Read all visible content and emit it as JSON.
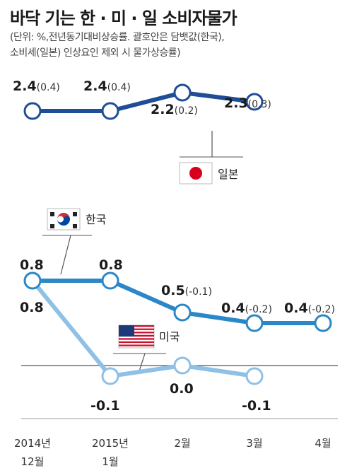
{
  "header": {
    "title": "바닥 기는 한 · 미 · 일 소비자물가",
    "note_line1": "(단위: %,전년동기대비상승률. 괄호안은 담뱃값(한국),",
    "note_line2": "소비세(일본) 인상요인 제외 시 물가상승률)"
  },
  "chart_data": {
    "type": "line",
    "categories": [
      "2014년 12월",
      "2015년 1월",
      "2월",
      "3월",
      "4월"
    ],
    "tick_top": [
      "2014년",
      "2015년",
      "2월",
      "3월",
      "4월"
    ],
    "tick_bottom": [
      "12월",
      "1월",
      "",
      "",
      ""
    ],
    "series": [
      {
        "name": "일본",
        "values": [
          2.4,
          2.4,
          2.2,
          2.3,
          null
        ],
        "labels": [
          "2.4",
          "2.4",
          "2.2",
          "2.3",
          ""
        ],
        "adjusted_labels": [
          "(0.4)",
          "(0.4)",
          "(0.2)",
          "(0.3)",
          ""
        ],
        "color": "#1f4e96"
      },
      {
        "name": "한국",
        "values": [
          0.8,
          0.8,
          0.5,
          0.4,
          0.4
        ],
        "labels": [
          "0.8",
          "0.8",
          "0.5",
          "0.4",
          "0.4"
        ],
        "adjusted_labels": [
          "",
          "",
          "(-0.1)",
          "(-0.2)",
          "(-0.2)"
        ],
        "color": "#2b87c8"
      },
      {
        "name": "미국",
        "values": [
          0.8,
          -0.1,
          0.0,
          -0.1,
          null
        ],
        "labels": [
          "0.8",
          "-0.1",
          "0.0",
          "-0.1",
          ""
        ],
        "adjusted_labels": [
          "",
          "",
          "",
          "",
          ""
        ],
        "color": "#8fc0e6"
      }
    ]
  }
}
